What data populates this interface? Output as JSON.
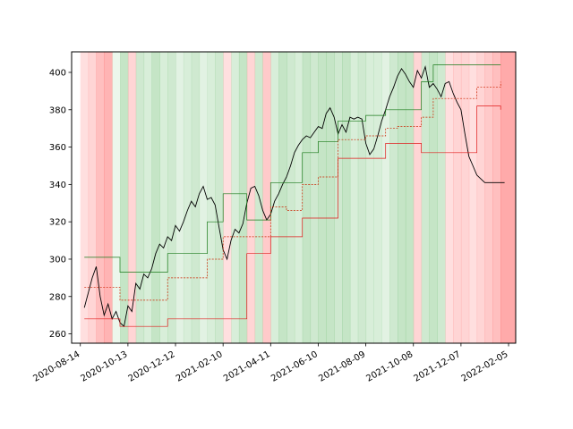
{
  "chart_data": {
    "type": "line",
    "title": "",
    "xlabel": "",
    "ylabel": "",
    "x_axis": {
      "kind": "date",
      "range": [
        "2020-08-03",
        "2022-02-14"
      ],
      "tick_labels": [
        "2020-08-14",
        "2020-10-13",
        "2020-12-12",
        "2021-02-10",
        "2021-04-11",
        "2021-06-10",
        "2021-08-09",
        "2021-10-08",
        "2021-12-07",
        "2022-02-05"
      ]
    },
    "y_axis": {
      "range": [
        255,
        411
      ],
      "ticks": [
        260,
        280,
        300,
        320,
        340,
        360,
        380,
        400
      ],
      "tick_labels": [
        "260",
        "280",
        "300",
        "320",
        "340",
        "360",
        "380",
        "400"
      ]
    },
    "grid": false,
    "legend": "none",
    "colors": {
      "price": "#000000",
      "upper_channel": "#1a7a1a",
      "lower_channel": "#e01a1a",
      "dashed_channels": [
        "#cc2200",
        "#2e7d1e"
      ],
      "background_positive": "#4caf50",
      "background_negative": "#ff3b3b",
      "axes": "#000000"
    },
    "background_regime": {
      "description_of_series": "shaded vertical bands, green = positive, red = negative",
      "dates": [
        "2020-08-14",
        "2020-08-24",
        "2020-09-03",
        "2020-09-13",
        "2020-09-23",
        "2020-10-03",
        "2020-10-13",
        "2020-10-23",
        "2020-11-02",
        "2020-11-12",
        "2020-11-22",
        "2020-12-02",
        "2020-12-12",
        "2020-12-22",
        "2021-01-01",
        "2021-01-11",
        "2021-01-21",
        "2021-01-31",
        "2021-02-10",
        "2021-02-20",
        "2021-03-02",
        "2021-03-12",
        "2021-03-22",
        "2021-04-01",
        "2021-04-11",
        "2021-04-21",
        "2021-05-01",
        "2021-05-11",
        "2021-05-21",
        "2021-05-31",
        "2021-06-10",
        "2021-06-20",
        "2021-06-30",
        "2021-07-10",
        "2021-07-20",
        "2021-07-30",
        "2021-08-09",
        "2021-08-19",
        "2021-08-29",
        "2021-09-08",
        "2021-09-18",
        "2021-09-28",
        "2021-10-08",
        "2021-10-18",
        "2021-10-28",
        "2021-11-07",
        "2021-11-17",
        "2021-11-27",
        "2021-12-07",
        "2021-12-17",
        "2021-12-27",
        "2022-01-06",
        "2022-01-16",
        "2022-01-26"
      ],
      "values": [
        -0.2,
        -0.3,
        -0.5,
        -0.6,
        0.1,
        0.5,
        -0.3,
        0.4,
        0.3,
        0.5,
        0.3,
        0.4,
        0.2,
        0.3,
        0.4,
        0.2,
        0.3,
        0.4,
        -0.2,
        0.3,
        0.5,
        -0.3,
        0.4,
        -0.4,
        0.3,
        0.5,
        0.4,
        0.3,
        0.5,
        0.4,
        0.5,
        0.5,
        0.4,
        0.5,
        0.3,
        0.4,
        0.3,
        0.3,
        0.2,
        0.4,
        0.5,
        0.5,
        -0.3,
        0.4,
        0.5,
        0.4,
        -0.2,
        -0.3,
        -0.3,
        -0.2,
        -0.3,
        -0.4,
        -0.5,
        -0.7
      ]
    },
    "series": [
      {
        "style": "solid",
        "color_key": "price",
        "x": [
          "2020-08-19",
          "2020-08-24",
          "2020-08-29",
          "2020-09-03",
          "2020-09-08",
          "2020-09-13",
          "2020-09-18",
          "2020-09-23",
          "2020-09-28",
          "2020-10-03",
          "2020-10-08",
          "2020-10-13",
          "2020-10-18",
          "2020-10-23",
          "2020-10-28",
          "2020-11-02",
          "2020-11-07",
          "2020-11-12",
          "2020-11-17",
          "2020-11-22",
          "2020-11-27",
          "2020-12-02",
          "2020-12-07",
          "2020-12-12",
          "2020-12-17",
          "2020-12-22",
          "2020-12-27",
          "2021-01-01",
          "2021-01-06",
          "2021-01-11",
          "2021-01-16",
          "2021-01-21",
          "2021-01-26",
          "2021-01-31",
          "2021-02-05",
          "2021-02-10",
          "2021-02-15",
          "2021-02-20",
          "2021-02-25",
          "2021-03-02",
          "2021-03-07",
          "2021-03-12",
          "2021-03-17",
          "2021-03-22",
          "2021-03-27",
          "2021-04-01",
          "2021-04-06",
          "2021-04-11",
          "2021-04-16",
          "2021-04-21",
          "2021-04-26",
          "2021-05-01",
          "2021-05-06",
          "2021-05-11",
          "2021-05-16",
          "2021-05-21",
          "2021-05-26",
          "2021-05-31",
          "2021-06-05",
          "2021-06-10",
          "2021-06-15",
          "2021-06-20",
          "2021-06-25",
          "2021-06-30",
          "2021-07-05",
          "2021-07-10",
          "2021-07-15",
          "2021-07-20",
          "2021-07-25",
          "2021-07-30",
          "2021-08-04",
          "2021-08-09",
          "2021-08-14",
          "2021-08-19",
          "2021-08-24",
          "2021-08-29",
          "2021-09-03",
          "2021-09-08",
          "2021-09-13",
          "2021-09-18",
          "2021-09-23",
          "2021-09-28",
          "2021-10-03",
          "2021-10-08",
          "2021-10-13",
          "2021-10-18",
          "2021-10-23",
          "2021-10-28",
          "2021-11-02",
          "2021-11-07",
          "2021-11-12",
          "2021-11-17",
          "2021-11-22",
          "2021-11-27",
          "2021-12-02",
          "2021-12-07",
          "2021-12-12",
          "2021-12-17",
          "2021-12-22",
          "2021-12-27",
          "2022-01-01",
          "2022-01-06",
          "2022-01-11",
          "2022-01-16",
          "2022-01-21",
          "2022-01-26",
          "2022-01-31"
        ],
        "y": [
          274,
          282,
          290,
          296,
          280,
          270,
          276,
          268,
          272,
          266,
          264,
          275,
          272,
          287,
          284,
          292,
          290,
          295,
          303,
          308,
          306,
          312,
          310,
          318,
          315,
          320,
          326,
          331,
          328,
          335,
          339,
          332,
          333,
          329,
          317,
          305,
          300,
          310,
          316,
          314,
          319,
          330,
          338,
          339,
          334,
          326,
          321,
          324,
          331,
          335,
          340,
          344,
          350,
          357,
          361,
          364,
          366,
          365,
          368,
          371,
          370,
          378,
          381,
          376,
          367,
          372,
          368,
          376,
          375,
          376,
          375,
          362,
          356,
          359,
          366,
          374,
          380,
          387,
          392,
          398,
          402,
          399,
          395,
          392,
          401,
          397,
          403,
          392,
          394,
          391,
          387,
          394,
          395,
          389,
          384,
          380,
          367,
          355,
          350,
          345,
          343,
          341,
          341,
          341,
          341,
          341,
          341
        ]
      },
      {
        "style": "solid",
        "color_key": "upper_channel",
        "x": [
          "2020-08-19",
          "2020-09-13",
          "2020-10-03",
          "2020-11-07",
          "2020-12-02",
          "2021-01-21",
          "2021-02-10",
          "2021-03-12",
          "2021-04-11",
          "2021-05-01",
          "2021-05-21",
          "2021-06-10",
          "2021-07-05",
          "2021-08-09",
          "2021-09-03",
          "2021-09-18",
          "2021-10-18",
          "2021-11-02",
          "2021-12-27",
          "2022-01-26"
        ],
        "y": [
          301,
          301,
          293,
          293,
          303,
          320,
          335,
          321,
          341,
          341,
          357,
          363,
          374,
          377,
          380,
          380,
          395,
          404,
          404,
          404
        ]
      },
      {
        "style": "solid",
        "color_key": "lower_channel",
        "x": [
          "2020-08-19",
          "2020-09-13",
          "2020-10-03",
          "2020-11-07",
          "2020-12-02",
          "2021-01-21",
          "2021-02-10",
          "2021-03-12",
          "2021-04-11",
          "2021-05-01",
          "2021-05-21",
          "2021-06-10",
          "2021-07-05",
          "2021-08-09",
          "2021-09-03",
          "2021-09-18",
          "2021-10-18",
          "2021-11-02",
          "2021-12-27",
          "2022-01-26"
        ],
        "y": [
          268,
          268,
          264,
          264,
          268,
          268,
          268,
          303,
          312,
          312,
          322,
          322,
          354,
          354,
          362,
          362,
          357,
          357,
          382,
          380
        ]
      },
      {
        "style": "dashed",
        "color_key": "dashed_channels",
        "x": [
          "2020-08-19",
          "2020-09-13",
          "2020-10-03",
          "2020-11-07",
          "2020-12-02",
          "2021-01-21",
          "2021-02-10",
          "2021-03-12",
          "2021-04-11",
          "2021-05-01",
          "2021-05-21",
          "2021-06-10",
          "2021-07-05",
          "2021-08-09",
          "2021-09-03",
          "2021-09-18",
          "2021-10-18",
          "2021-11-02",
          "2021-12-27",
          "2022-01-26"
        ],
        "y": [
          285,
          285,
          278,
          278,
          290,
          300,
          312,
          312,
          328,
          326,
          340,
          344,
          364,
          366,
          370,
          371,
          376,
          386,
          392,
          395
        ]
      }
    ]
  }
}
